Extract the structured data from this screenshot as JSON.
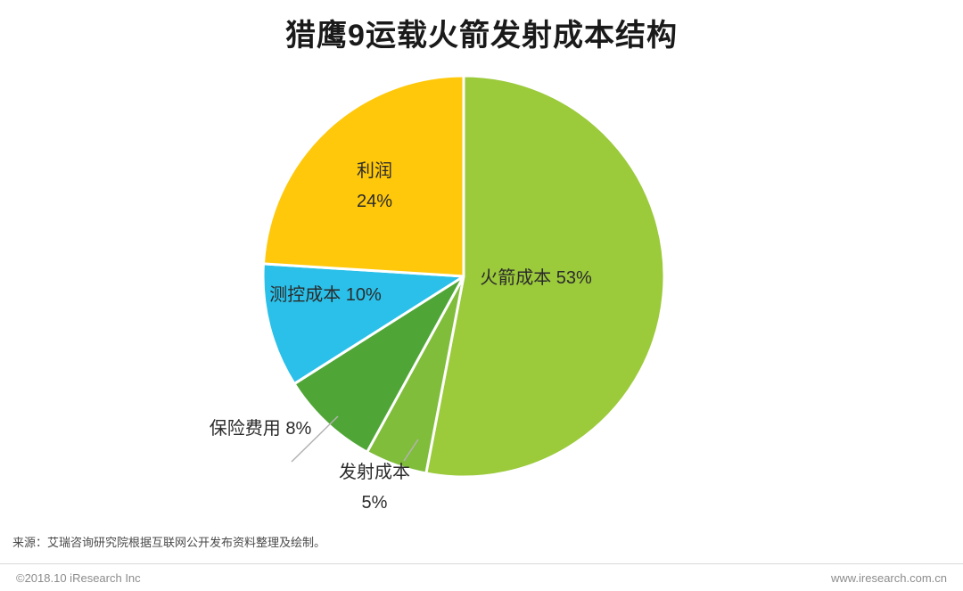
{
  "title": "猎鹰9运载火箭发射成本结构",
  "chart_data": {
    "type": "pie",
    "title": "猎鹰9运载火箭发射成本结构",
    "start_angle_deg": -90,
    "direction": "clockwise",
    "unit": "%",
    "legend": "none",
    "slices": [
      {
        "label": "火箭成本",
        "value": 53,
        "color": "#9bca3b",
        "display": "火箭成本 53%"
      },
      {
        "label": "发射成本",
        "value": 5,
        "color": "#80bd3a",
        "display": "发射成本 5%"
      },
      {
        "label": "保险费用",
        "value": 8,
        "color": "#4fa535",
        "display": "保险费用 8%"
      },
      {
        "label": "测控成本",
        "value": 10,
        "color": "#2ac0e9",
        "display": "测控成本 10%"
      },
      {
        "label": "利润",
        "value": 24,
        "color": "#ffc80a",
        "display": "利润 24%"
      }
    ]
  },
  "labels": {
    "profit_line1": "利润",
    "profit_line2": "24%",
    "rocket_label": "火箭成本 53%",
    "control_label": "测控成本 10%",
    "insurance_label": "保险费用 8%",
    "launch_line1": "发射成本",
    "launch_line2": "5%"
  },
  "source": "来源：艾瑞咨询研究院根据互联网公开发布资料整理及绘制。",
  "footer": {
    "copyright": "©2018.10 iResearch Inc",
    "website": "www.iresearch.com.cn"
  }
}
